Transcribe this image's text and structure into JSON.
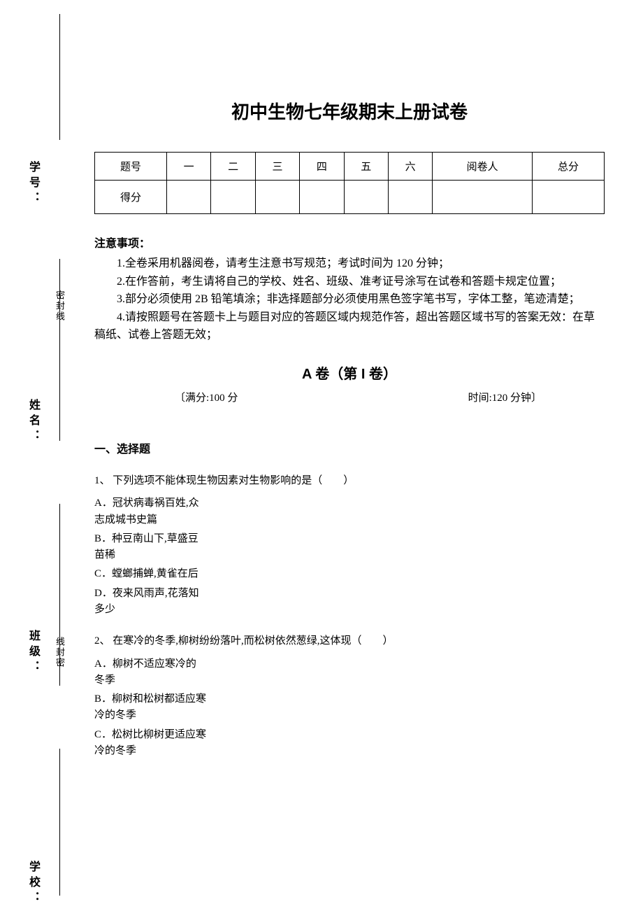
{
  "sidebar": {
    "labels": {
      "xuehao": "学号：",
      "xingming": "姓名：",
      "banji": "班级：",
      "xuexiao": "学校："
    },
    "seal_1": "密封线",
    "seal_2": "线封密"
  },
  "title": "初中生物七年级期末上册试卷",
  "table": {
    "headers": [
      "题号",
      "一",
      "二",
      "三",
      "四",
      "五",
      "六",
      "阅卷人",
      "总分"
    ],
    "row2_label": "得分"
  },
  "notice_heading": "注意事项：",
  "notices": [
    "1.全卷采用机器阅卷，请考生注意书写规范；考试时间为 120 分钟；",
    "2.在作答前，考生请将自己的学校、姓名、班级、准考证号涂写在试卷和答题卡规定位置；",
    "3.部分必须使用 2B 铅笔填涂；非选择题部分必须使用黑色签字笔书写，字体工整，笔迹清楚；",
    "4.请按照题号在答题卡上与题目对应的答题区域内规范作答，超出答题区域书写的答案无效：在草稿纸、试卷上答题无效；"
  ],
  "paper_section": "A 卷（第 I 卷）",
  "meta_left": "〔满分:100 分",
  "meta_right": "时间:120 分钟〕",
  "section_heading": "一、选择题",
  "questions": [
    {
      "stem": "1、 下列选项不能体现生物因素对生物影响的是（　　）",
      "options": [
        "A．冠状病毒祸百姓,众志成城书史篇",
        "B．种豆南山下,草盛豆苗稀",
        "C．螳螂捕蝉,黄雀在后",
        "D．夜来风雨声,花落知多少"
      ]
    },
    {
      "stem": "2、 在寒冷的冬季,柳树纷纷落叶,而松树依然葱绿,这体现（　　）",
      "options": [
        "A．柳树不适应寒冷的冬季",
        "B．柳树和松树都适应寒冷的冬季",
        "C．松树比柳树更适应寒冷的冬季"
      ]
    }
  ]
}
